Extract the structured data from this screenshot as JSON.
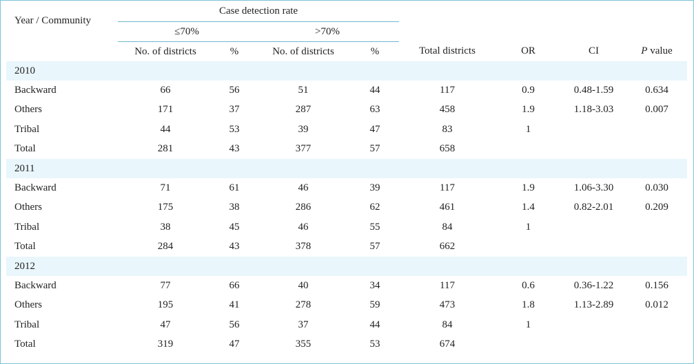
{
  "header": {
    "group_label": "Case detection rate",
    "row_label": "Year / Community",
    "sub_low": "≤70%",
    "sub_high": ">70%",
    "col_nd1": "No. of districts",
    "col_pct1": "%",
    "col_nd2": "No. of districts",
    "col_pct2": "%",
    "col_total": "Total districts",
    "col_or": "OR",
    "col_ci": "CI",
    "col_p_italic": "P",
    "col_p_rest": " value"
  },
  "years": [
    {
      "year": "2010",
      "rows": [
        {
          "community": "Backward",
          "n1": "66",
          "p1": "56",
          "n2": "51",
          "p2": "44",
          "total": "117",
          "or": "0.9",
          "ci": "0.48-1.59",
          "p": "0.634"
        },
        {
          "community": "Others",
          "n1": "171",
          "p1": "37",
          "n2": "287",
          "p2": "63",
          "total": "458",
          "or": "1.9",
          "ci": "1.18-3.03",
          "p": "0.007"
        },
        {
          "community": "Tribal",
          "n1": "44",
          "p1": "53",
          "n2": "39",
          "p2": "47",
          "total": "83",
          "or": "1",
          "ci": "",
          "p": ""
        },
        {
          "community": "Total",
          "n1": "281",
          "p1": "43",
          "n2": "377",
          "p2": "57",
          "total": "658",
          "or": "",
          "ci": "",
          "p": ""
        }
      ]
    },
    {
      "year": "2011",
      "rows": [
        {
          "community": "Backward",
          "n1": "71",
          "p1": "61",
          "n2": "46",
          "p2": "39",
          "total": "117",
          "or": "1.9",
          "ci": "1.06-3.30",
          "p": "0.030"
        },
        {
          "community": "Others",
          "n1": "175",
          "p1": "38",
          "n2": "286",
          "p2": "62",
          "total": "461",
          "or": "1.4",
          "ci": "0.82-2.01",
          "p": "0.209"
        },
        {
          "community": "Tribal",
          "n1": "38",
          "p1": "45",
          "n2": "46",
          "p2": "55",
          "total": "84",
          "or": "1",
          "ci": "",
          "p": ""
        },
        {
          "community": "Total",
          "n1": "284",
          "p1": "43",
          "n2": "378",
          "p2": "57",
          "total": "662",
          "or": "",
          "ci": "",
          "p": ""
        }
      ]
    },
    {
      "year": "2012",
      "rows": [
        {
          "community": "Backward",
          "n1": "77",
          "p1": "66",
          "n2": "40",
          "p2": "34",
          "total": "117",
          "or": "0.6",
          "ci": "0.36-1.22",
          "p": "0.156"
        },
        {
          "community": "Others",
          "n1": "195",
          "p1": "41",
          "n2": "278",
          "p2": "59",
          "total": "473",
          "or": "1.8",
          "ci": "1.13-2.89",
          "p": "0.012"
        },
        {
          "community": "Tribal",
          "n1": "47",
          "p1": "56",
          "n2": "37",
          "p2": "44",
          "total": "84",
          "or": "1",
          "ci": "",
          "p": ""
        },
        {
          "community": "Total",
          "n1": "319",
          "p1": "47",
          "n2": "355",
          "p2": "53",
          "total": "674",
          "or": "",
          "ci": "",
          "p": ""
        }
      ]
    }
  ]
}
